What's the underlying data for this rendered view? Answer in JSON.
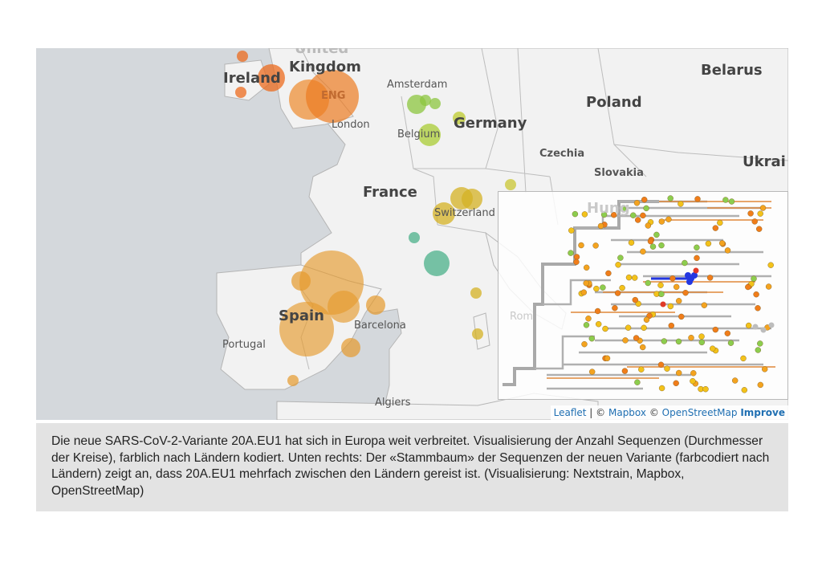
{
  "map": {
    "countries": [
      "Ireland",
      "Kingdom",
      "Belarus",
      "Poland",
      "Germany",
      "France",
      "Spain",
      "Portugal",
      "Ukrai",
      "Hung"
    ],
    "countries_small": [
      "Czechia",
      "Slovakia"
    ],
    "partial": [
      "United"
    ],
    "cities": [
      "Amsterdam",
      "London",
      "Belgium",
      "Switzerland",
      "Barcelona",
      "Algiers",
      "Rom"
    ],
    "overlay_text": [
      "ENG"
    ],
    "colors": {
      "water": "#d4d8dc",
      "land": "#f2f2f2",
      "border": "#b5b5b5",
      "uk": "#e9711f",
      "spain": "#e59a2c",
      "neth": "#8cc63f",
      "swiss": "#d4b124",
      "med": "#4bb08a"
    },
    "bubbles": [
      {
        "name": "ireland",
        "color": "#ec6b1e",
        "size": "medium"
      },
      {
        "name": "england",
        "color": "#ec7c22",
        "size": "large"
      },
      {
        "name": "netherlands",
        "color": "#8cc63f",
        "size": "small"
      },
      {
        "name": "belgium",
        "color": "#a9cc34",
        "size": "small"
      },
      {
        "name": "switzerland",
        "color": "#d4b124",
        "size": "medium"
      },
      {
        "name": "spain",
        "color": "#e59a2c",
        "size": "large"
      },
      {
        "name": "med",
        "color": "#4bb08a",
        "size": "small"
      }
    ]
  },
  "tree": {
    "colors": {
      "branch": "#a9a9a9",
      "orange": "#f07d1a",
      "yellow": "#f3c21a",
      "amber": "#f4a31f",
      "green": "#8ccd4e",
      "blue": "#2437e0",
      "red": "#e03a26",
      "grey": "#bdbdbd"
    }
  },
  "attribution": {
    "leaflet": "Leaflet",
    "sep": " | © ",
    "mapbox": "Mapbox",
    "copy": " © ",
    "osm": "OpenStreetMap",
    "improve": "Improve"
  },
  "caption": "Die neue SARS-CoV-2-Variante 20A.EU1 hat sich in Europa weit verbreitet. Visualisierung der Anzahl Sequenzen (Durchmesser der Kreise), farblich nach Ländern kodiert. Unten rechts: Der «Stammbaum» der Sequenzen der neuen Variante (farbcodiert nach Ländern) zeigt an, dass 20A.EU1 mehrfach zwischen den Ländern gereist ist. (Visualisierung: Nextstrain, Mapbox, OpenStreetMap)"
}
